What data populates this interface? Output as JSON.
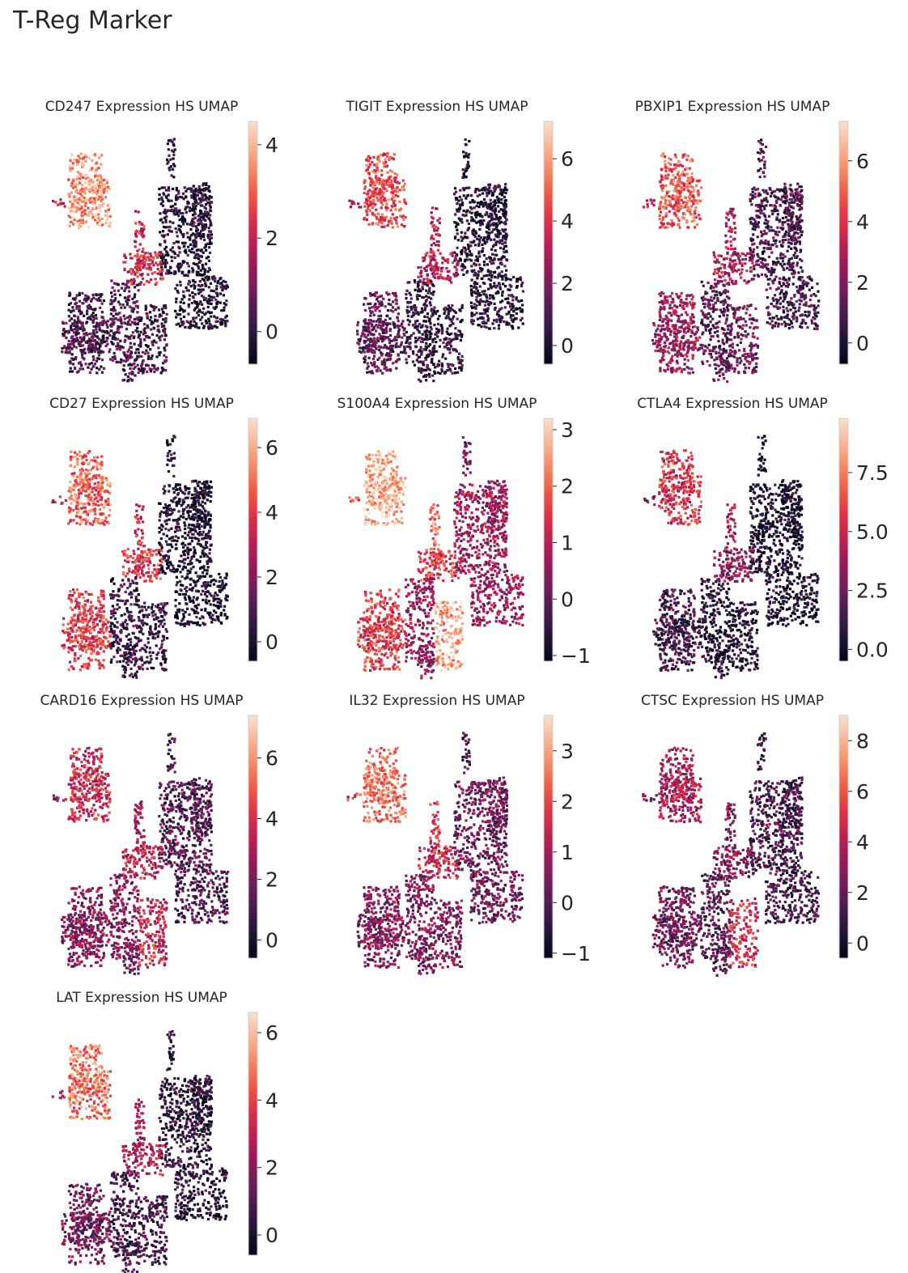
{
  "figure_title": "T-Reg Marker",
  "colormap_name": "rocket",
  "colormap_stops": [
    "#03051a",
    "#2e1a44",
    "#6a1d5d",
    "#a2185b",
    "#d92847",
    "#f06042",
    "#f6a47c",
    "#fbe1cf"
  ],
  "chart_data": [
    {
      "type": "scatter",
      "title": "CD247 Expression HS UMAP",
      "gene": "CD247",
      "xlabel": "",
      "ylabel": "",
      "colorbar": {
        "ticks": [
          "4",
          "2",
          "0"
        ],
        "tick_values": [
          4,
          2,
          0
        ],
        "range": [
          -0.7,
          4.5
        ]
      },
      "cluster_expression": {
        "tcell_big": 0.82,
        "tcell_left": 0.5,
        "vstrip": 0.55,
        "top_strip": 0.12,
        "right_big": 0.1,
        "bridge": 0.55,
        "b_left": 0.2,
        "b_mid": 0.22,
        "b_right": 0.18
      }
    },
    {
      "type": "scatter",
      "title": "TIGIT Expression HS UMAP",
      "gene": "TIGIT",
      "xlabel": "",
      "ylabel": "",
      "colorbar": {
        "ticks": [
          "6",
          "4",
          "2",
          "0"
        ],
        "tick_values": [
          6,
          4,
          2,
          0
        ],
        "range": [
          -0.6,
          7.2
        ]
      },
      "cluster_expression": {
        "tcell_big": 0.65,
        "tcell_left": 0.45,
        "vstrip": 0.5,
        "top_strip": 0.08,
        "right_big": 0.1,
        "bridge": 0.5,
        "b_left": 0.25,
        "b_mid": 0.15,
        "b_right": 0.15
      }
    },
    {
      "type": "scatter",
      "title": "PBXIP1 Expression HS UMAP",
      "gene": "PBXIP1",
      "xlabel": "",
      "ylabel": "",
      "colorbar": {
        "ticks": [
          "6",
          "4",
          "2",
          "0"
        ],
        "tick_values": [
          6,
          4,
          2,
          0
        ],
        "range": [
          -0.7,
          7.3
        ]
      },
      "cluster_expression": {
        "tcell_big": 0.68,
        "tcell_left": 0.45,
        "vstrip": 0.45,
        "top_strip": 0.2,
        "right_big": 0.2,
        "bridge": 0.45,
        "b_left": 0.42,
        "b_mid": 0.25,
        "b_right": 0.3
      }
    },
    {
      "type": "scatter",
      "title": "CD27 Expression HS UMAP",
      "gene": "CD27",
      "xlabel": "",
      "ylabel": "",
      "colorbar": {
        "ticks": [
          "6",
          "4",
          "2",
          "0"
        ],
        "tick_values": [
          6,
          4,
          2,
          0
        ],
        "range": [
          -0.6,
          6.9
        ]
      },
      "cluster_expression": {
        "tcell_big": 0.72,
        "tcell_left": 0.5,
        "vstrip": 0.55,
        "top_strip": 0.1,
        "right_big": 0.08,
        "bridge": 0.62,
        "b_left": 0.62,
        "b_mid": 0.15,
        "b_right": 0.15
      }
    },
    {
      "type": "scatter",
      "title": "S100A4 Expression HS UMAP",
      "gene": "S100A4",
      "xlabel": "",
      "ylabel": "",
      "colorbar": {
        "ticks": [
          "3",
          "2",
          "1",
          "0",
          "−1"
        ],
        "tick_values": [
          3,
          2,
          1,
          0,
          -1
        ],
        "range": [
          -1.1,
          3.2
        ]
      },
      "cluster_expression": {
        "tcell_big": 0.88,
        "tcell_left": 0.7,
        "vstrip": 0.75,
        "top_strip": 0.3,
        "right_big": 0.42,
        "bridge": 0.6,
        "b_left": 0.62,
        "b_mid": 0.4,
        "b_right": 0.85
      }
    },
    {
      "type": "scatter",
      "title": "CTLA4 Expression HS UMAP",
      "gene": "CTLA4",
      "xlabel": "",
      "ylabel": "",
      "colorbar": {
        "ticks": [
          "7.5",
          "5.0",
          "2.5",
          "0.0"
        ],
        "tick_values": [
          7.5,
          5.0,
          2.5,
          0.0
        ],
        "range": [
          -0.5,
          9.8
        ]
      },
      "cluster_expression": {
        "tcell_big": 0.58,
        "tcell_left": 0.3,
        "vstrip": 0.45,
        "top_strip": 0.05,
        "right_big": 0.06,
        "bridge": 0.4,
        "b_left": 0.18,
        "b_mid": 0.1,
        "b_right": 0.1
      }
    },
    {
      "type": "scatter",
      "title": "CARD16 Expression HS UMAP",
      "gene": "CARD16",
      "xlabel": "",
      "ylabel": "",
      "colorbar": {
        "ticks": [
          "6",
          "4",
          "2",
          "0"
        ],
        "tick_values": [
          6,
          4,
          2,
          0
        ],
        "range": [
          -0.6,
          7.4
        ]
      },
      "cluster_expression": {
        "tcell_big": 0.55,
        "tcell_left": 0.4,
        "vstrip": 0.45,
        "top_strip": 0.2,
        "right_big": 0.22,
        "bridge": 0.5,
        "b_left": 0.35,
        "b_mid": 0.35,
        "b_right": 0.55
      }
    },
    {
      "type": "scatter",
      "title": "IL32 Expression HS UMAP",
      "gene": "IL32",
      "xlabel": "",
      "ylabel": "",
      "colorbar": {
        "ticks": [
          "3",
          "2",
          "1",
          "0",
          "−1"
        ],
        "tick_values": [
          3,
          2,
          1,
          0,
          -1
        ],
        "range": [
          -1.1,
          3.7
        ]
      },
      "cluster_expression": {
        "tcell_big": 0.75,
        "tcell_left": 0.6,
        "vstrip": 0.6,
        "top_strip": 0.2,
        "right_big": 0.3,
        "bridge": 0.55,
        "b_left": 0.35,
        "b_mid": 0.35,
        "b_right": 0.35
      }
    },
    {
      "type": "scatter",
      "title": "CTSC Expression HS UMAP",
      "gene": "CTSC",
      "xlabel": "",
      "ylabel": "",
      "colorbar": {
        "ticks": [
          "8",
          "6",
          "4",
          "2",
          "0"
        ],
        "tick_values": [
          8,
          6,
          4,
          2,
          0
        ],
        "range": [
          -0.6,
          9.0
        ]
      },
      "cluster_expression": {
        "tcell_big": 0.45,
        "tcell_left": 0.35,
        "vstrip": 0.35,
        "top_strip": 0.18,
        "right_big": 0.2,
        "bridge": 0.35,
        "b_left": 0.3,
        "b_mid": 0.25,
        "b_right": 0.55
      }
    },
    {
      "type": "scatter",
      "title": "LAT Expression HS UMAP",
      "gene": "LAT",
      "xlabel": "",
      "ylabel": "",
      "colorbar": {
        "ticks": [
          "6",
          "4",
          "2",
          "0"
        ],
        "tick_values": [
          6,
          4,
          2,
          0
        ],
        "range": [
          -0.6,
          6.6
        ]
      },
      "cluster_expression": {
        "tcell_big": 0.75,
        "tcell_left": 0.5,
        "vstrip": 0.45,
        "top_strip": 0.15,
        "right_big": 0.12,
        "bridge": 0.5,
        "b_left": 0.3,
        "b_mid": 0.2,
        "b_right": 0.18
      }
    }
  ]
}
